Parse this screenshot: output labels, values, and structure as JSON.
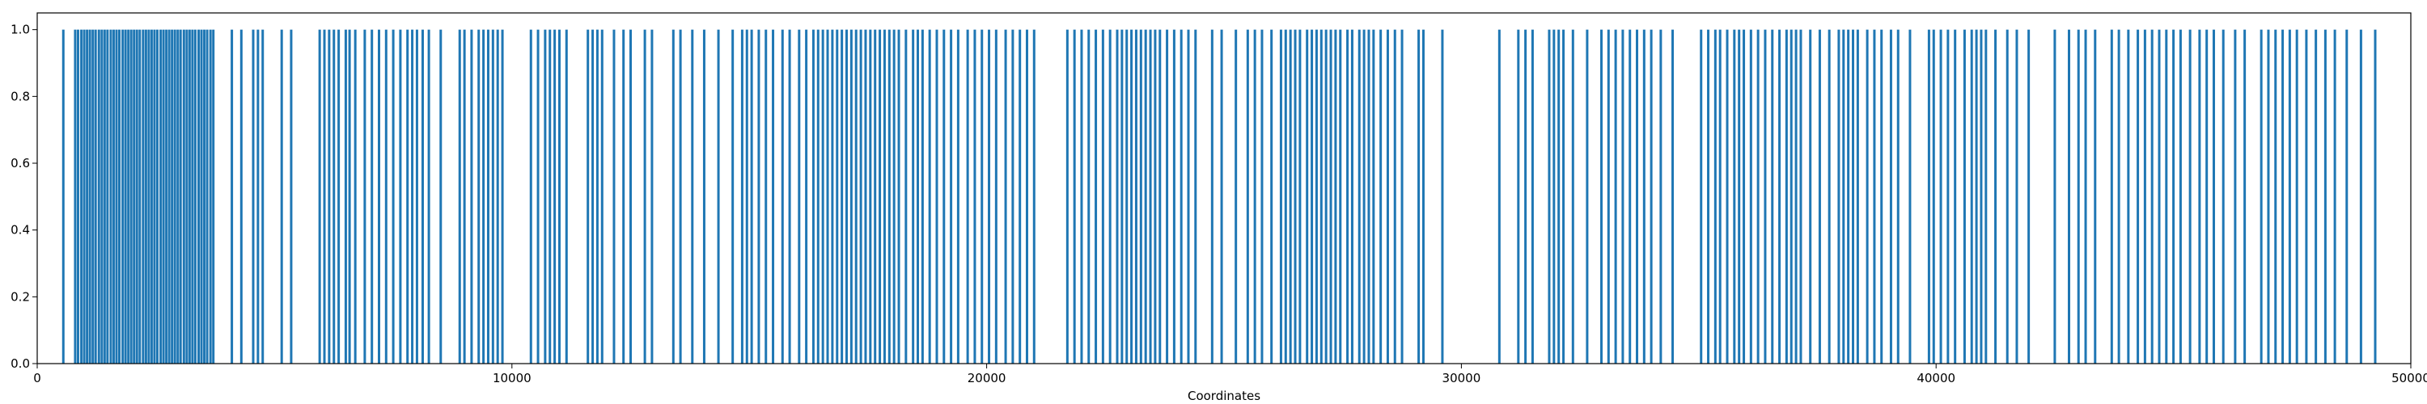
{
  "chart_data": {
    "type": "bar",
    "title": "",
    "xlabel": "Coordinates",
    "ylabel": "",
    "xlim": [
      0,
      50000
    ],
    "ylim": [
      0,
      1.05
    ],
    "grid": false,
    "bar_color": "#1f77b4",
    "x_ticks": [
      0,
      10000,
      20000,
      30000,
      40000,
      50000
    ],
    "x_tick_labels": [
      "0",
      "10000",
      "20000",
      "30000",
      "40000",
      "50000"
    ],
    "y_ticks": [
      0,
      0.2,
      0.4,
      0.6,
      0.8,
      1.0
    ],
    "y_tick_labels": [
      "0.0",
      "0.2",
      "0.4",
      "0.6",
      "0.8",
      "1.0"
    ],
    "series": [
      {
        "values_all": 1,
        "x": [
          550,
          800,
          860,
          930,
          990,
          1050,
          1110,
          1170,
          1230,
          1300,
          1360,
          1420,
          1480,
          1550,
          1610,
          1670,
          1730,
          1800,
          1860,
          1920,
          1980,
          2040,
          2100,
          2160,
          2230,
          2290,
          2350,
          2410,
          2470,
          2530,
          2600,
          2660,
          2720,
          2780,
          2840,
          2900,
          2960,
          3020,
          3090,
          3150,
          3210,
          3270,
          3330,
          3400,
          3460,
          3520,
          3580,
          3650,
          3710,
          4100,
          4300,
          4550,
          4650,
          4750,
          5150,
          5350,
          5950,
          6050,
          6150,
          6250,
          6350,
          6500,
          6580,
          6700,
          6900,
          7050,
          7200,
          7350,
          7500,
          7650,
          7800,
          7900,
          8000,
          8120,
          8250,
          8500,
          8900,
          9000,
          9150,
          9300,
          9400,
          9500,
          9600,
          9700,
          9800,
          10400,
          10550,
          10700,
          10800,
          10900,
          11000,
          11150,
          11600,
          11700,
          11800,
          11900,
          12150,
          12350,
          12500,
          12800,
          12950,
          13400,
          13550,
          13800,
          14050,
          14350,
          14650,
          14850,
          14950,
          15050,
          15200,
          15350,
          15500,
          15700,
          15850,
          16050,
          16200,
          16350,
          16450,
          16550,
          16650,
          16750,
          16850,
          16950,
          17050,
          17150,
          17250,
          17350,
          17450,
          17550,
          17650,
          17750,
          17850,
          17950,
          18050,
          18150,
          18300,
          18450,
          18550,
          18650,
          18800,
          18950,
          19100,
          19250,
          19400,
          19600,
          19750,
          19900,
          20050,
          20200,
          20400,
          20550,
          20700,
          20850,
          21000,
          21700,
          21850,
          22000,
          22150,
          22300,
          22450,
          22600,
          22750,
          22850,
          22950,
          23050,
          23150,
          23250,
          23350,
          23450,
          23550,
          23650,
          23800,
          23950,
          24100,
          24250,
          24400,
          24750,
          24950,
          25250,
          25500,
          25650,
          25800,
          26000,
          26200,
          26300,
          26400,
          26500,
          26600,
          26750,
          26850,
          26950,
          27050,
          27150,
          27250,
          27350,
          27450,
          27600,
          27700,
          27850,
          27950,
          28050,
          28150,
          28300,
          28450,
          28600,
          28750,
          29100,
          29200,
          29600,
          30800,
          31200,
          31350,
          31500,
          31850,
          31950,
          32050,
          32150,
          32350,
          32650,
          32950,
          33100,
          33250,
          33400,
          33550,
          33700,
          33850,
          34000,
          34200,
          34450,
          35050,
          35200,
          35350,
          35450,
          35600,
          35750,
          35850,
          35950,
          36100,
          36250,
          36400,
          36550,
          36700,
          36850,
          36950,
          37050,
          37150,
          37350,
          37550,
          37750,
          37950,
          38050,
          38150,
          38250,
          38350,
          38550,
          38700,
          38850,
          39050,
          39200,
          39450,
          39850,
          39950,
          40100,
          40250,
          40400,
          40600,
          40750,
          40850,
          40950,
          41050,
          41250,
          41500,
          41700,
          41950,
          42500,
          42800,
          43000,
          43150,
          43350,
          43700,
          43850,
          44050,
          44250,
          44400,
          44550,
          44700,
          44850,
          45000,
          45150,
          45350,
          45550,
          45700,
          45850,
          46050,
          46300,
          46500,
          46850,
          47000,
          47150,
          47300,
          47450,
          47600,
          47800,
          48000,
          48200,
          48400,
          48650,
          48950,
          49250
        ]
      }
    ]
  }
}
